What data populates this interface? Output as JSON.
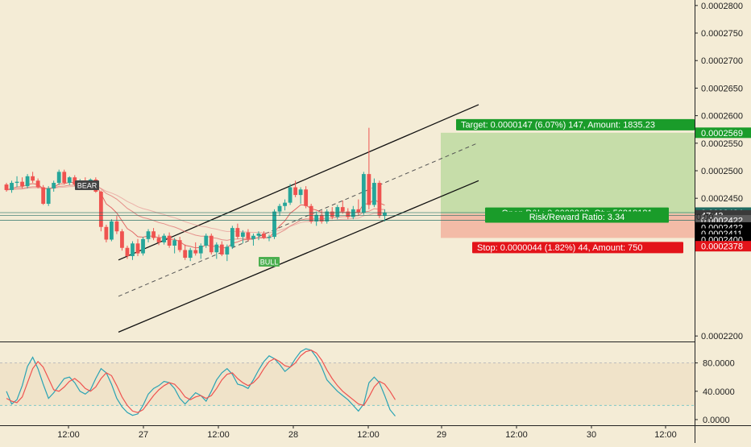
{
  "colors": {
    "background": "#f4ecd6",
    "up_candle": "#26a69a",
    "down_candle": "#ef5350",
    "target_zone": "#c3dca6",
    "stop_zone": "#f2b8a4",
    "target_label": "#1a9c2a",
    "stop_label": "#e3141a",
    "stoch_k": "#2aa3b4",
    "stoch_d": "#ef5350"
  },
  "chart_data": [
    {
      "type": "candlestick",
      "title": "",
      "price_axis": {
        "ticks": [
          "0.0002800",
          "0.0002750",
          "0.0002700",
          "0.0002650",
          "0.0002600",
          "0.0002550",
          "0.0002500",
          "0.0002450",
          "0.0002200"
        ],
        "range": [
          0.000219,
          0.000281
        ]
      },
      "time_axis": {
        "labels": [
          "12:00",
          "27",
          "12:00",
          "28",
          "12:00",
          "29",
          "12:00",
          "30",
          "12:00"
        ]
      },
      "price_labels": [
        {
          "text": "0.0002569",
          "bg": "#1a9c2a",
          "color": "#ffffff",
          "price": 0.0002569
        },
        {
          "text": "0.0002424",
          "bg": "#1f6b62",
          "color": "#ffffff",
          "price": 0.0002424
        },
        {
          "text": "47:43",
          "bg": "#3a3a3a",
          "color": "#ffffff",
          "price": 0.0002419
        },
        {
          "text": "0.0002422",
          "bg": "#5c5c5c",
          "color": "#ffffff",
          "price": 0.000241
        },
        {
          "text": "0.0002422",
          "bg": "#000000",
          "color": "#ffffff",
          "price": 0.0002397
        },
        {
          "text": "0.0002411",
          "bg": "#000000",
          "color": "#ffffff",
          "price": 0.0002386
        },
        {
          "text": "0.0002400",
          "bg": "#000000",
          "color": "#ffffff",
          "price": 0.0002375
        },
        {
          "text": "0.0002378",
          "bg": "#e3141a",
          "color": "#ffffff",
          "price": 0.0002363
        }
      ],
      "price_label_partial": "0.00",
      "position": {
        "target_text": "Target: 0.0000147 (6.07%) 147, Amount: 1835.23",
        "pnl_text": "Open P&L: 0.0000002, Qty: 56818181",
        "rr_text": "Risk/Reward Ratio: 3.34",
        "stop_text": "Stop: 0.0000044 (1.82%) 44, Amount: 750",
        "entry": 0.0002422,
        "target": 0.0002569,
        "stop": 0.0002378
      },
      "annotations": [
        "BEAR",
        "BULL"
      ],
      "candles": [
        [
          0.0002475,
          0.0002478,
          0.0002462,
          0.0002465
        ],
        [
          0.0002465,
          0.0002482,
          0.000246,
          0.0002478
        ],
        [
          0.0002478,
          0.000249,
          0.000247,
          0.000248
        ],
        [
          0.000248,
          0.0002488,
          0.0002468,
          0.0002472
        ],
        [
          0.0002472,
          0.0002494,
          0.0002468,
          0.000249
        ],
        [
          0.000249,
          0.0002498,
          0.0002478,
          0.0002482
        ],
        [
          0.0002482,
          0.0002486,
          0.0002468,
          0.000247
        ],
        [
          0.000247,
          0.0002474,
          0.0002438,
          0.000244
        ],
        [
          0.000244,
          0.0002472,
          0.0002436,
          0.0002468
        ],
        [
          0.0002468,
          0.0002482,
          0.0002462,
          0.0002478
        ],
        [
          0.0002478,
          0.0002502,
          0.0002474,
          0.0002498
        ],
        [
          0.0002498,
          0.0002502,
          0.0002475,
          0.0002478
        ],
        [
          0.0002478,
          0.000249,
          0.0002474,
          0.0002488
        ],
        [
          0.0002488,
          0.0002492,
          0.0002472,
          0.0002475
        ],
        [
          0.0002475,
          0.0002485,
          0.0002468,
          0.0002482
        ],
        [
          0.0002482,
          0.0002488,
          0.000247,
          0.0002474
        ],
        [
          0.0002474,
          0.0002486,
          0.000247,
          0.0002484
        ],
        [
          0.0002484,
          0.0002488,
          0.000246,
          0.0002462
        ],
        [
          0.0002462,
          0.0002464,
          0.000239,
          0.0002398
        ],
        [
          0.0002398,
          0.0002402,
          0.000237,
          0.0002375
        ],
        [
          0.0002375,
          0.0002412,
          0.0002372,
          0.0002408
        ],
        [
          0.0002408,
          0.0002418,
          0.0002385,
          0.000239
        ],
        [
          0.000239,
          0.0002394,
          0.0002355,
          0.000236
        ],
        [
          0.000236,
          0.0002364,
          0.000234,
          0.0002345
        ],
        [
          0.0002345,
          0.0002372,
          0.0002338,
          0.0002368
        ],
        [
          0.0002368,
          0.0002376,
          0.0002345,
          0.000235
        ],
        [
          0.000235,
          0.000238,
          0.0002346,
          0.0002376
        ],
        [
          0.0002376,
          0.0002394,
          0.000237,
          0.000239
        ],
        [
          0.000239,
          0.0002396,
          0.0002374,
          0.0002378
        ],
        [
          0.0002378,
          0.0002384,
          0.0002365,
          0.000237
        ],
        [
          0.000237,
          0.0002386,
          0.0002366,
          0.0002382
        ],
        [
          0.0002382,
          0.0002388,
          0.000236,
          0.0002364
        ],
        [
          0.0002364,
          0.0002378,
          0.000235,
          0.0002374
        ],
        [
          0.0002374,
          0.000238,
          0.0002352,
          0.0002356
        ],
        [
          0.0002356,
          0.0002366,
          0.0002338,
          0.0002342
        ],
        [
          0.0002342,
          0.000236,
          0.0002336,
          0.0002356
        ],
        [
          0.0002356,
          0.000237,
          0.0002346,
          0.000235
        ],
        [
          0.000235,
          0.0002368,
          0.000234,
          0.0002364
        ],
        [
          0.0002364,
          0.0002386,
          0.000236,
          0.0002382
        ],
        [
          0.0002382,
          0.0002386,
          0.0002348,
          0.0002352
        ],
        [
          0.0002352,
          0.000237,
          0.000234,
          0.0002366
        ],
        [
          0.0002366,
          0.0002372,
          0.0002345,
          0.0002348
        ],
        [
          0.0002348,
          0.0002366,
          0.0002336,
          0.0002362
        ],
        [
          0.0002362,
          0.00024,
          0.0002358,
          0.0002396
        ],
        [
          0.0002396,
          0.0002404,
          0.0002376,
          0.000238
        ],
        [
          0.000238,
          0.0002392,
          0.0002368,
          0.0002388
        ],
        [
          0.0002388,
          0.0002394,
          0.0002372,
          0.0002376
        ],
        [
          0.0002376,
          0.0002386,
          0.0002364,
          0.0002382
        ],
        [
          0.0002382,
          0.000239,
          0.0002374,
          0.0002386
        ],
        [
          0.0002386,
          0.000239,
          0.0002376,
          0.0002378
        ],
        [
          0.0002378,
          0.0002384,
          0.0002372,
          0.000238
        ],
        [
          0.000238,
          0.000243,
          0.0002376,
          0.0002426
        ],
        [
          0.0002426,
          0.000244,
          0.0002418,
          0.0002436
        ],
        [
          0.0002436,
          0.0002448,
          0.0002428,
          0.0002442
        ],
        [
          0.0002442,
          0.0002476,
          0.0002438,
          0.000247
        ],
        [
          0.000247,
          0.0002482,
          0.0002452,
          0.0002456
        ],
        [
          0.0002456,
          0.000247,
          0.000244,
          0.0002466
        ],
        [
          0.0002466,
          0.0002472,
          0.0002432,
          0.0002436
        ],
        [
          0.0002436,
          0.000244,
          0.0002404,
          0.0002408
        ],
        [
          0.0002408,
          0.0002426,
          0.00024,
          0.000242
        ],
        [
          0.000242,
          0.0002428,
          0.0002404,
          0.0002408
        ],
        [
          0.0002408,
          0.000243,
          0.0002404,
          0.0002426
        ],
        [
          0.0002426,
          0.0002434,
          0.0002412,
          0.0002416
        ],
        [
          0.0002416,
          0.0002438,
          0.0002412,
          0.0002434
        ],
        [
          0.0002434,
          0.0002446,
          0.0002422,
          0.0002426
        ],
        [
          0.0002426,
          0.0002432,
          0.0002412,
          0.0002416
        ],
        [
          0.0002416,
          0.0002436,
          0.0002412,
          0.000243
        ],
        [
          0.000243,
          0.0002448,
          0.0002418,
          0.0002424
        ],
        [
          0.0002424,
          0.0002498,
          0.000242,
          0.0002494
        ],
        [
          0.0002494,
          0.0002578,
          0.000243,
          0.0002438
        ],
        [
          0.0002438,
          0.0002486,
          0.0002434,
          0.0002478
        ],
        [
          0.0002478,
          0.0002482,
          0.0002414,
          0.0002418
        ],
        [
          0.0002418,
          0.000243,
          0.0002408,
          0.0002424
        ]
      ]
    },
    {
      "type": "line",
      "title": "",
      "y_ticks": [
        "80.0000",
        "40.0000",
        "0.0000"
      ],
      "ylim": [
        -8,
        108
      ],
      "series": [
        {
          "values": [
            40,
            22,
            28,
            48,
            75,
            88,
            72,
            50,
            30,
            38,
            48,
            58,
            60,
            52,
            40,
            36,
            42,
            58,
            72,
            66,
            50,
            30,
            18,
            10,
            6,
            8,
            20,
            36,
            44,
            48,
            54,
            52,
            44,
            30,
            22,
            30,
            38,
            34,
            26,
            40,
            56,
            66,
            72,
            64,
            50,
            48,
            44,
            56,
            70,
            82,
            90,
            86,
            78,
            68,
            74,
            86,
            96,
            100,
            98,
            88,
            74,
            56,
            48,
            40,
            34,
            28,
            20,
            12,
            22,
            52,
            60,
            52,
            34,
            14,
            5
          ]
        },
        {
          "values": [
            30,
            26,
            24,
            32,
            52,
            72,
            82,
            74,
            58,
            42,
            40,
            46,
            54,
            58,
            52,
            44,
            40,
            46,
            58,
            66,
            62,
            48,
            32,
            20,
            12,
            10,
            14,
            24,
            34,
            42,
            48,
            52,
            50,
            42,
            32,
            28,
            32,
            34,
            30,
            34,
            44,
            56,
            64,
            66,
            58,
            52,
            48,
            52,
            60,
            72,
            82,
            86,
            82,
            76,
            74,
            80,
            90,
            96,
            98,
            94,
            84,
            70,
            58,
            48,
            40,
            34,
            28,
            22,
            20,
            32,
            46,
            54,
            50,
            40,
            28
          ]
        }
      ]
    }
  ]
}
